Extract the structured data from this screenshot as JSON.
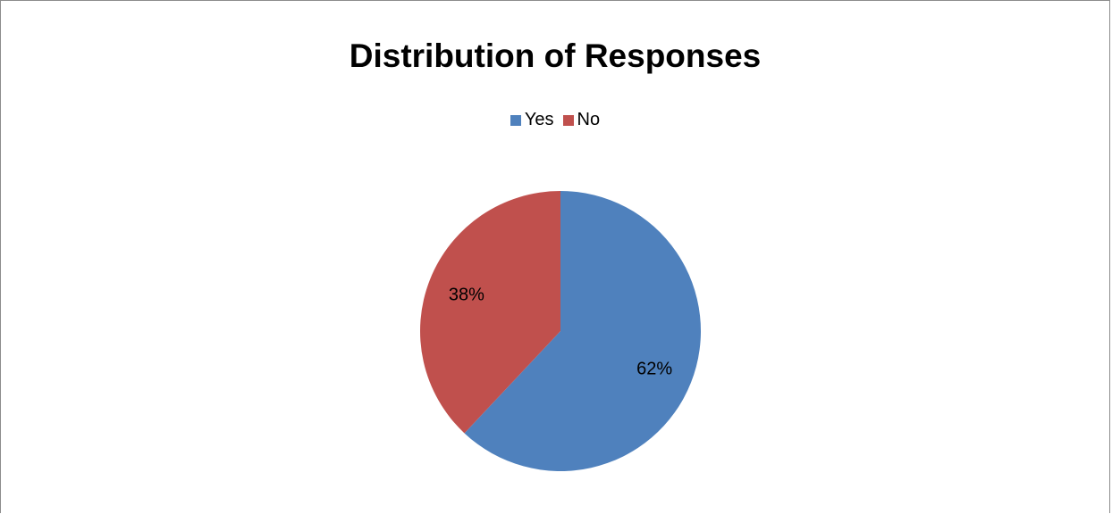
{
  "chart_data": {
    "type": "pie",
    "title": "Distribution of Responses",
    "categories": [
      "Yes",
      "No"
    ],
    "values": [
      62,
      38
    ],
    "data_labels": [
      "62%",
      "38%"
    ],
    "colors": [
      "#4f81bd",
      "#c0504d"
    ],
    "legend": {
      "placement": "top",
      "entries": [
        "Yes",
        "No"
      ]
    },
    "start_angle": "12 o'clock",
    "direction": "clockwise"
  }
}
